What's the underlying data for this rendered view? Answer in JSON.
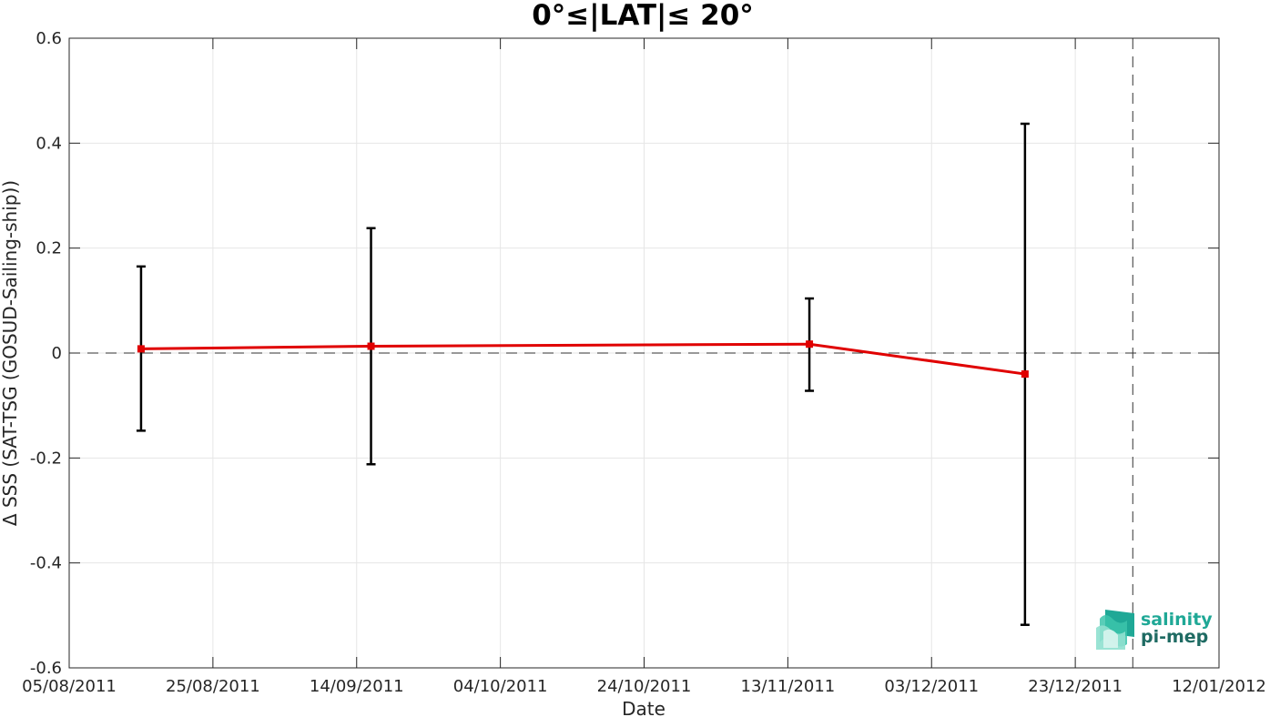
{
  "chart_data": {
    "type": "line",
    "title": "0°≤|LAT|≤ 20°",
    "xlabel": "Date",
    "ylabel": "Δ SSS (SAT-TSG (GOSUD-Sailing-ship))",
    "x_ticks": [
      "05/08/2011",
      "25/08/2011",
      "14/09/2011",
      "04/10/2011",
      "24/10/2011",
      "13/11/2011",
      "03/12/2011",
      "23/12/2011",
      "12/01/2012"
    ],
    "xlim": [
      "05/08/2011",
      "12/01/2012"
    ],
    "ylim": [
      -0.6,
      0.6
    ],
    "y_ticks": [
      -0.6,
      -0.4,
      -0.2,
      0,
      0.2,
      0.4,
      0.6
    ],
    "grid": true,
    "reference_line_y": 0,
    "reference_line_x": "31/12/2011",
    "series": [
      {
        "color": "#e00000",
        "points": [
          {
            "x": "15/08/2011",
            "y": 0.008,
            "err_low": -0.148,
            "err_high": 0.165
          },
          {
            "x": "16/09/2011",
            "y": 0.013,
            "err_low": -0.212,
            "err_high": 0.238
          },
          {
            "x": "16/11/2011",
            "y": 0.017,
            "err_low": -0.072,
            "err_high": 0.104
          },
          {
            "x": "16/12/2011",
            "y": -0.04,
            "err_low": -0.518,
            "err_high": 0.437
          }
        ]
      }
    ]
  },
  "logo": {
    "line1": "salinity",
    "line2": "pi-mep"
  }
}
